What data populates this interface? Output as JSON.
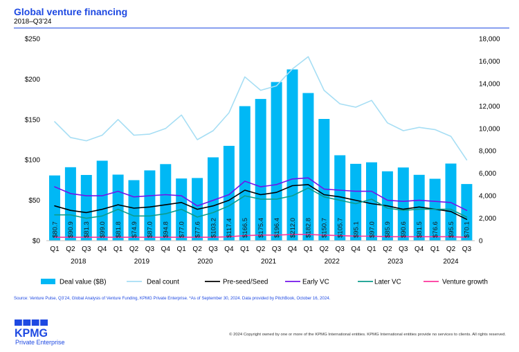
{
  "chart_data": {
    "type": "bar",
    "title": "Global venture financing",
    "subtitle": "2018–Q3’24",
    "categories": [
      "Q1",
      "Q2",
      "Q3",
      "Q4",
      "Q1",
      "Q2",
      "Q3",
      "Q4",
      "Q1",
      "Q2",
      "Q3",
      "Q4",
      "Q1",
      "Q2",
      "Q3",
      "Q4",
      "Q1",
      "Q2",
      "Q3",
      "Q4",
      "Q1",
      "Q2",
      "Q3",
      "Q4",
      "Q1",
      "Q2",
      "Q3"
    ],
    "year_groups": [
      {
        "label": "2018",
        "start": 0,
        "count": 4
      },
      {
        "label": "2019",
        "start": 4,
        "count": 4
      },
      {
        "label": "2020",
        "start": 8,
        "count": 4
      },
      {
        "label": "2021",
        "start": 12,
        "count": 4
      },
      {
        "label": "2022",
        "start": 16,
        "count": 4
      },
      {
        "label": "2023",
        "start": 20,
        "count": 4
      },
      {
        "label": "2024",
        "start": 24,
        "count": 3
      }
    ],
    "ylim": [
      0,
      250
    ],
    "y_tick_values": [
      0,
      50,
      100,
      150,
      200,
      250
    ],
    "y_tick_labels": [
      "$0",
      "$50",
      "$100",
      "$150",
      "$200",
      "$250"
    ],
    "y2lim": [
      0,
      18000
    ],
    "y2_tick_values": [
      0,
      2000,
      4000,
      6000,
      8000,
      10000,
      12000,
      14000,
      16000,
      18000
    ],
    "y2_tick_labels": [
      "0",
      "2,000",
      "4,000",
      "6,000",
      "8,000",
      "10,000",
      "12,000",
      "14,000",
      "16,000",
      "18,000"
    ],
    "grid": false,
    "legend_position": "bottom",
    "series": [
      {
        "name": "Deal value ($B)",
        "type": "bar",
        "secondary_axis": false,
        "color": "#00B8F5",
        "values": [
          80.7,
          90.9,
          81.3,
          99.0,
          81.8,
          74.9,
          87.0,
          94.8,
          77.0,
          77.6,
          103.2,
          117.4,
          166.5,
          175.4,
          196.4,
          212.0,
          182.8,
          150.7,
          105.7,
          95.1,
          97.0,
          85.9,
          90.6,
          81.5,
          76.6,
          95.5,
          70.1
        ],
        "labels": [
          "$80.7",
          "$90.9",
          "$81.3",
          "$99.0",
          "$81.8",
          "$74.9",
          "$87.0",
          "$94.8",
          "$77.0",
          "$77.6",
          "$103.2",
          "$117.4",
          "$166.5",
          "$175.4",
          "$196.4",
          "$212.0",
          "$182.8",
          "$150.7",
          "$105.7",
          "$95.1",
          "$97.0",
          "$85.9",
          "$90.6",
          "$81.5",
          "$76.6",
          "$95.5",
          "$70.1"
        ]
      },
      {
        "name": "Deal count",
        "type": "line",
        "secondary_axis": true,
        "color": "#A6DEF4",
        "values": [
          10600,
          9200,
          8900,
          9400,
          10800,
          9400,
          9500,
          10000,
          11200,
          9000,
          9800,
          11400,
          14600,
          13400,
          13800,
          15300,
          16400,
          13400,
          12200,
          11900,
          12500,
          10500,
          9800,
          10100,
          9900,
          9300,
          7200
        ]
      },
      {
        "name": "Pre-seed/Seed",
        "type": "line",
        "secondary_axis": true,
        "color": "#000000",
        "values": [
          3100,
          2700,
          2500,
          2800,
          3200,
          2900,
          3000,
          3200,
          3400,
          2800,
          3100,
          3600,
          4500,
          4100,
          4300,
          4900,
          5000,
          4100,
          3900,
          3600,
          3300,
          3100,
          2800,
          3000,
          2800,
          2600,
          1900
        ]
      },
      {
        "name": "Early VC",
        "type": "line",
        "secondary_axis": true,
        "color": "#7213EA",
        "values": [
          4800,
          4200,
          4000,
          4000,
          4400,
          3900,
          4000,
          4100,
          4000,
          3100,
          3600,
          4100,
          5300,
          4800,
          5000,
          5500,
          5600,
          4600,
          4500,
          4400,
          4400,
          3600,
          3500,
          3600,
          3500,
          3400,
          2700
        ]
      },
      {
        "name": "Later VC",
        "type": "line",
        "secondary_axis": true,
        "color": "#0C9C8C",
        "values": [
          2300,
          2300,
          2000,
          2200,
          2800,
          2200,
          2200,
          2400,
          2800,
          2100,
          2500,
          3100,
          4000,
          3700,
          3700,
          4000,
          4700,
          3900,
          3600,
          3300,
          3700,
          2900,
          2700,
          2800,
          2800,
          2800,
          2100
        ]
      },
      {
        "name": "Venture growth",
        "type": "line",
        "secondary_axis": true,
        "color": "#FD349C",
        "values": [
          300,
          300,
          300,
          300,
          300,
          300,
          300,
          300,
          300,
          300,
          300,
          350,
          450,
          500,
          500,
          550,
          550,
          500,
          450,
          400,
          400,
          350,
          350,
          350,
          350,
          350,
          300
        ]
      }
    ]
  },
  "footer": {
    "source": "Source: Venture Pulse, Q3’24, Global Analysis of Venture Funding, KPMG Private Enterprise. *As of September 30, 2024. Data provided by PitchBook, October 16, 2024.",
    "brand": "KPMG",
    "division": "Private Enterprise",
    "copyright": "© 2024 Copyright owned by one or more of the KPMG International entities. KPMG International entities provide no services to clients. All rights reserved."
  }
}
